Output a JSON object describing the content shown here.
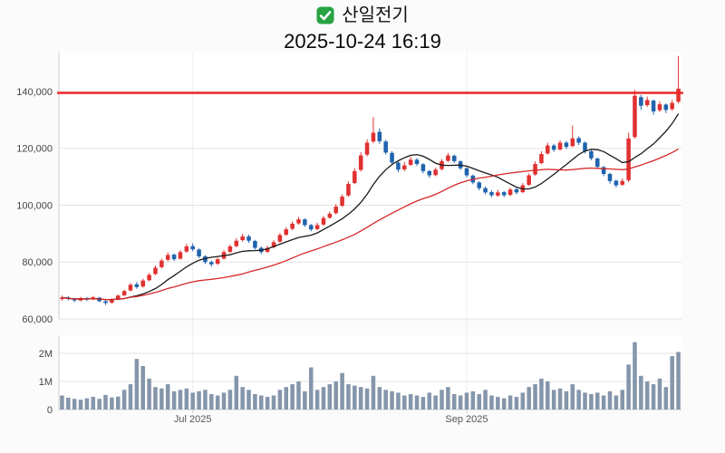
{
  "header": {
    "check_icon": "green-checkbox",
    "title": "산일전기",
    "subtitle": "2025-10-24 16:19"
  },
  "chart_data": {
    "type": "candlestick_with_volume",
    "title": "산일전기",
    "datetime": "2025-10-24 16:19",
    "legend_position": "none",
    "grid": true,
    "price_axis": {
      "ticks": [
        60000,
        80000,
        100000,
        120000,
        140000
      ],
      "tick_labels": [
        "60,000",
        "80,000",
        "100,000",
        "120,000",
        "140,000"
      ],
      "range": [
        60000,
        153700
      ]
    },
    "volume_axis": {
      "ticks": [
        0,
        1000000,
        2000000
      ],
      "tick_labels": [
        "0",
        "1M",
        "2M"
      ],
      "range": [
        0,
        2500000
      ]
    },
    "x_ticks": [
      {
        "index": 21,
        "label": "Jul 2025"
      },
      {
        "index": 65,
        "label": "Sep 2025"
      }
    ],
    "price_line": {
      "value": 139500,
      "color": "#ee2224"
    },
    "moving_averages": [
      {
        "window": 10,
        "color": "#1a1a1a"
      },
      {
        "window": 30,
        "color": "#d62728"
      }
    ],
    "colors": {
      "up": "#e03131",
      "down": "#1f63ae",
      "volume": "#8596ab",
      "grid": "#e3e3e3",
      "axis": "#cccccc"
    },
    "candles_format": [
      "open",
      "high",
      "low",
      "close",
      "volume"
    ],
    "candles": [
      [
        67000,
        68200,
        66400,
        67500,
        500000
      ],
      [
        67600,
        68000,
        66500,
        67000,
        420000
      ],
      [
        67000,
        67400,
        65900,
        66500,
        380000
      ],
      [
        66500,
        67800,
        66200,
        67300,
        350000
      ],
      [
        67300,
        67700,
        66300,
        66800,
        400000
      ],
      [
        66900,
        68100,
        66600,
        67600,
        450000
      ],
      [
        67500,
        67700,
        65900,
        66200,
        380000
      ],
      [
        66200,
        66600,
        64900,
        65600,
        520000
      ],
      [
        65700,
        67200,
        65400,
        66800,
        430000
      ],
      [
        66900,
        68600,
        66600,
        68200,
        460000
      ],
      [
        68300,
        70300,
        68000,
        69800,
        700000
      ],
      [
        70000,
        72600,
        69700,
        72000,
        900000
      ],
      [
        72200,
        73000,
        70600,
        71200,
        1800000
      ],
      [
        71400,
        74200,
        71000,
        73500,
        1550000
      ],
      [
        73600,
        76200,
        73200,
        75500,
        1100000
      ],
      [
        75800,
        78800,
        75400,
        78000,
        800000
      ],
      [
        78200,
        81200,
        77800,
        80500,
        750000
      ],
      [
        80800,
        83400,
        80200,
        82500,
        900000
      ],
      [
        82600,
        83000,
        80400,
        81000,
        650000
      ],
      [
        81200,
        84200,
        80800,
        83500,
        700000
      ],
      [
        83700,
        86400,
        83200,
        85500,
        750000
      ],
      [
        85600,
        86600,
        83800,
        84500,
        600000
      ],
      [
        84400,
        84800,
        81400,
        82000,
        650000
      ],
      [
        82000,
        82400,
        79300,
        80000,
        700000
      ],
      [
        80000,
        80600,
        78400,
        79200,
        550000
      ],
      [
        79400,
        81600,
        79000,
        81000,
        500000
      ],
      [
        81200,
        84200,
        80900,
        83500,
        600000
      ],
      [
        83600,
        86200,
        83200,
        85500,
        700000
      ],
      [
        85600,
        88400,
        85200,
        87500,
        1200000
      ],
      [
        87700,
        90000,
        87200,
        89000,
        800000
      ],
      [
        89000,
        89600,
        86800,
        87500,
        700000
      ],
      [
        87400,
        87800,
        84400,
        85000,
        550000
      ],
      [
        85000,
        85500,
        82800,
        83500,
        500000
      ],
      [
        83600,
        85800,
        83200,
        85000,
        450000
      ],
      [
        85200,
        87700,
        84800,
        87000,
        500000
      ],
      [
        87200,
        90200,
        86800,
        89500,
        700000
      ],
      [
        89600,
        92300,
        89200,
        91500,
        800000
      ],
      [
        91700,
        94200,
        91200,
        93500,
        900000
      ],
      [
        93600,
        95900,
        93200,
        95000,
        1000000
      ],
      [
        95000,
        95400,
        92400,
        93000,
        650000
      ],
      [
        93000,
        93400,
        90800,
        91500,
        1500000
      ],
      [
        91600,
        93800,
        91200,
        93000,
        700000
      ],
      [
        93200,
        96200,
        92800,
        95500,
        800000
      ],
      [
        95600,
        97800,
        95200,
        97000,
        900000
      ],
      [
        97200,
        100400,
        96800,
        99500,
        1000000
      ],
      [
        99800,
        103800,
        99400,
        103000,
        1300000
      ],
      [
        103400,
        108400,
        103000,
        107500,
        900000
      ],
      [
        107800,
        113000,
        107400,
        112000,
        850000
      ],
      [
        112400,
        118600,
        111800,
        117500,
        800000
      ],
      [
        117800,
        123200,
        117200,
        122000,
        750000
      ],
      [
        122400,
        131000,
        121800,
        125500,
        1200000
      ],
      [
        125800,
        127000,
        121600,
        122500,
        800000
      ],
      [
        122400,
        123000,
        117800,
        118500,
        700000
      ],
      [
        118400,
        119000,
        114200,
        115000,
        650000
      ],
      [
        115000,
        115600,
        111600,
        112500,
        600000
      ],
      [
        112600,
        115200,
        112000,
        114000,
        500000
      ],
      [
        114200,
        117000,
        113800,
        116000,
        550000
      ],
      [
        116000,
        116600,
        113800,
        114500,
        500000
      ],
      [
        114400,
        114800,
        111200,
        112000,
        450000
      ],
      [
        112000,
        112400,
        109600,
        110500,
        600000
      ],
      [
        110600,
        113200,
        110200,
        112500,
        500000
      ],
      [
        112700,
        116200,
        112200,
        115500,
        700000
      ],
      [
        115600,
        118400,
        115200,
        117500,
        800000
      ],
      [
        117400,
        117800,
        114800,
        115500,
        550000
      ],
      [
        115400,
        115800,
        112400,
        113000,
        500000
      ],
      [
        113000,
        113400,
        109800,
        110500,
        600000
      ],
      [
        110400,
        110800,
        107400,
        108000,
        650000
      ],
      [
        108000,
        108400,
        105200,
        106000,
        550000
      ],
      [
        106000,
        106600,
        103800,
        104500,
        700000
      ],
      [
        104600,
        105200,
        102800,
        103500,
        500000
      ],
      [
        103400,
        105400,
        103000,
        104500,
        450000
      ],
      [
        104600,
        105000,
        102800,
        103500,
        400000
      ],
      [
        103600,
        106200,
        103200,
        105500,
        500000
      ],
      [
        105600,
        106000,
        103800,
        104500,
        450000
      ],
      [
        104600,
        107800,
        104200,
        107000,
        600000
      ],
      [
        107200,
        111200,
        106800,
        110500,
        800000
      ],
      [
        110800,
        115400,
        110400,
        114500,
        900000
      ],
      [
        114800,
        119000,
        114400,
        118000,
        1100000
      ],
      [
        118200,
        122000,
        117800,
        121000,
        1000000
      ],
      [
        121000,
        121600,
        118800,
        119500,
        700000
      ],
      [
        119600,
        122800,
        119200,
        122000,
        750000
      ],
      [
        122000,
        122600,
        119800,
        120500,
        650000
      ],
      [
        120800,
        128000,
        120400,
        123500,
        900000
      ],
      [
        123600,
        124200,
        121200,
        122000,
        700000
      ],
      [
        122000,
        122400,
        118200,
        119000,
        600000
      ],
      [
        119000,
        119400,
        115800,
        116500,
        550000
      ],
      [
        116400,
        116800,
        112800,
        113500,
        600000
      ],
      [
        113400,
        113800,
        110200,
        111000,
        500000
      ],
      [
        111000,
        111400,
        107600,
        108500,
        650000
      ],
      [
        108600,
        109000,
        106200,
        107000,
        500000
      ],
      [
        107200,
        109400,
        106800,
        108500,
        700000
      ],
      [
        108800,
        125500,
        108200,
        123500,
        1600000
      ],
      [
        124000,
        140500,
        123400,
        138500,
        2400000
      ],
      [
        138000,
        138800,
        133600,
        135000,
        1200000
      ],
      [
        135200,
        138200,
        134600,
        137000,
        1000000
      ],
      [
        136800,
        137200,
        131800,
        133000,
        900000
      ],
      [
        133400,
        136600,
        132800,
        135500,
        1100000
      ],
      [
        135400,
        135800,
        132400,
        133500,
        800000
      ],
      [
        133800,
        137000,
        133200,
        136000,
        1900000
      ],
      [
        136400,
        152500,
        135800,
        141000,
        2050000
      ]
    ]
  }
}
